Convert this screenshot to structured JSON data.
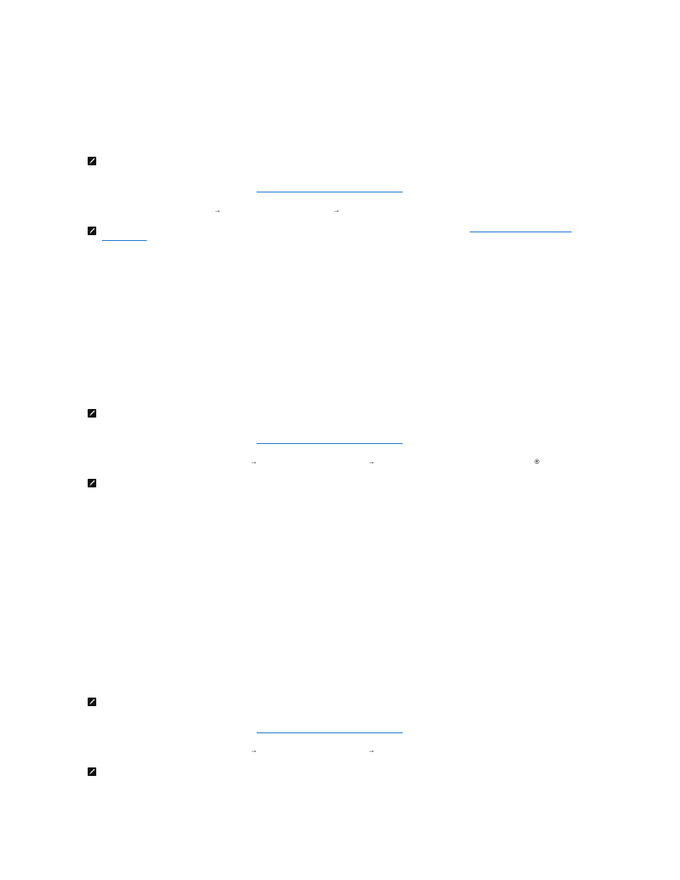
{
  "colors": {
    "link": "#0066cc",
    "icon": "#111111"
  },
  "icons": {
    "note": "note-pencil-icon"
  },
  "glyphs": {
    "arrow": "→",
    "registered": "®"
  }
}
